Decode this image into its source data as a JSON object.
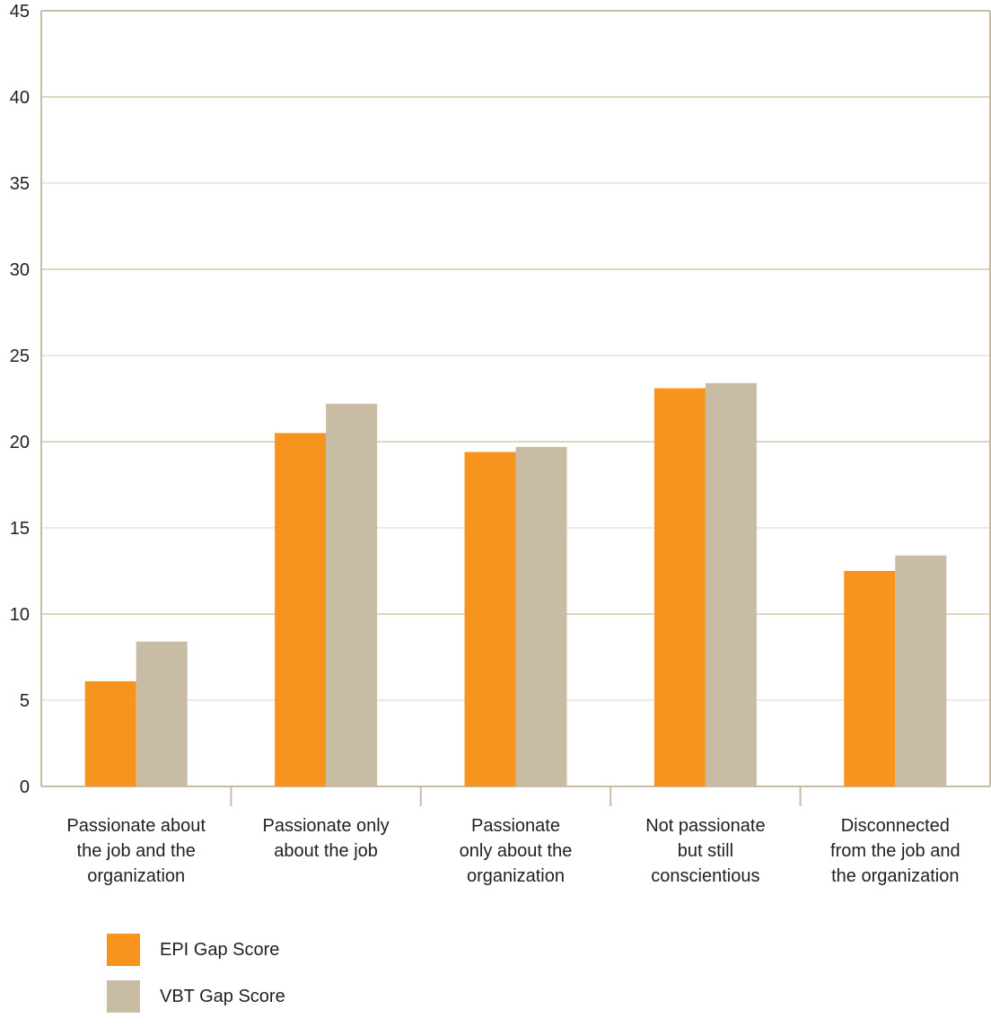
{
  "chart_data": {
    "type": "bar",
    "title": "",
    "xlabel": "",
    "ylabel": "",
    "ylim": [
      0,
      45
    ],
    "yticks": [
      0,
      5,
      10,
      15,
      20,
      25,
      30,
      35,
      40,
      45
    ],
    "grid": true,
    "legend_position": "bottom-left",
    "categories": [
      [
        "Passionate about",
        "the job and the",
        "organization"
      ],
      [
        "Passionate only",
        "about the job"
      ],
      [
        "Passionate",
        "only about the",
        "organization"
      ],
      [
        "Not passionate",
        "but still",
        "conscientious"
      ],
      [
        "Disconnected",
        "from the job and",
        "the organization"
      ]
    ],
    "series": [
      {
        "name": "EPI Gap Score",
        "color": "#f7941d",
        "values": [
          6.1,
          20.5,
          19.4,
          23.1,
          12.5
        ]
      },
      {
        "name": "VBT Gap Score",
        "color": "#c8bca5",
        "values": [
          8.4,
          22.2,
          19.7,
          23.4,
          13.4
        ]
      }
    ]
  },
  "colors": {
    "axis": "#c8bca5",
    "grid": "#ded5c0",
    "frame": "#c8bca5"
  }
}
